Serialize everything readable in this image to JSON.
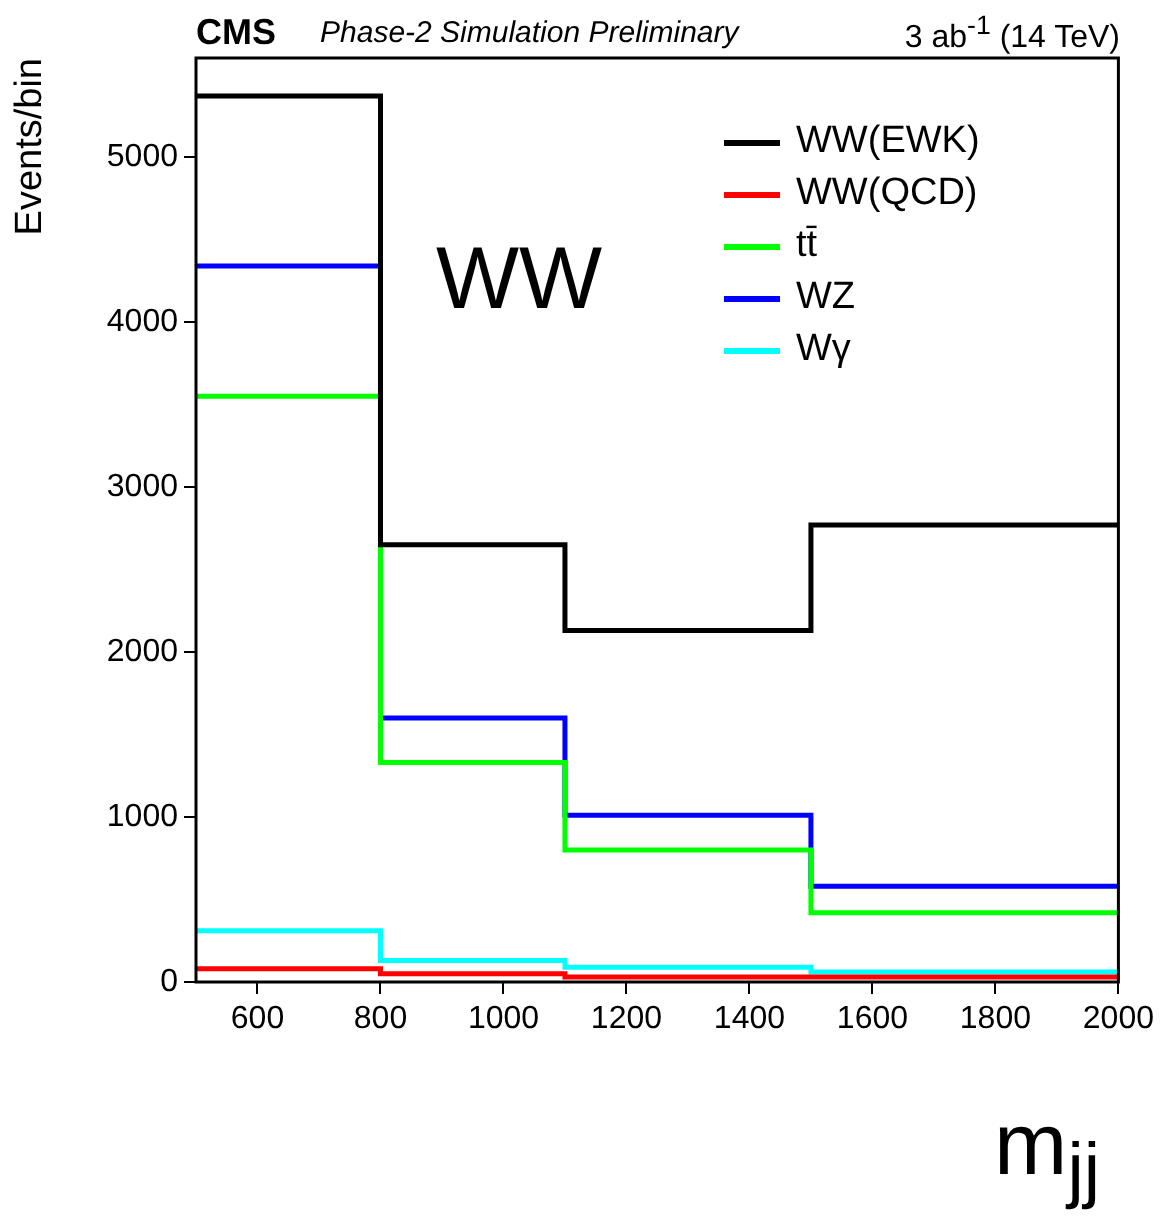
{
  "chart_data": {
    "type": "histogram",
    "title": "CMS",
    "subtitle": "Phase-2 Simulation Preliminary",
    "annotations": [
      "3 ab$^{-1}$ (14 TeV)",
      "WW"
    ],
    "xlabel": "m$_{jj}$",
    "ylabel": "Events/bin",
    "bins": [
      500,
      800,
      1100,
      1500,
      2000
    ],
    "series": [
      {
        "name": "WW(EWK)",
        "color": "#000000",
        "values": [
          5370,
          2650,
          2130,
          2770
        ]
      },
      {
        "name": "WW(QCD)",
        "color": "#ff0000",
        "values": [
          80,
          50,
          30,
          30
        ]
      },
      {
        "name": "tt̄",
        "color": "#00ff00",
        "values": [
          3550,
          1330,
          800,
          420
        ]
      },
      {
        "name": "WZ",
        "color": "#0000ff",
        "values": [
          4340,
          1600,
          1010,
          580
        ]
      },
      {
        "name": "Wγ",
        "color": "#00ffff",
        "values": [
          310,
          130,
          90,
          60
        ]
      }
    ],
    "xlim": [
      500,
      2000
    ],
    "xticks": [
      600,
      800,
      1000,
      1200,
      1400,
      1600,
      1800,
      2000
    ],
    "ylim": [
      0,
      5600
    ],
    "yticks": [
      0,
      1000,
      2000,
      3000,
      4000,
      5000
    ],
    "legend": "top right"
  }
}
